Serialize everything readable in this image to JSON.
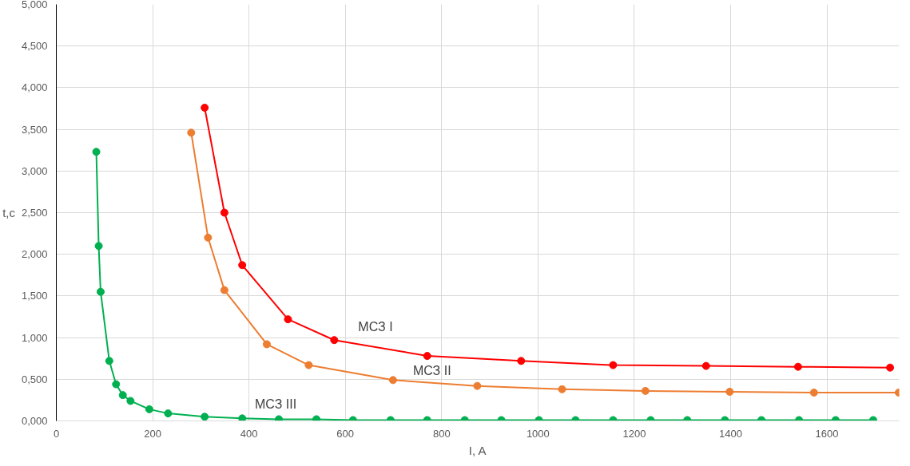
{
  "chart_data": {
    "type": "line",
    "xlabel": "I, A",
    "ylabel": "t,c",
    "xlim": [
      0,
      1750
    ],
    "xticks": [
      0,
      200,
      400,
      600,
      800,
      1000,
      1200,
      1400,
      1600
    ],
    "ylim": [
      0,
      5
    ],
    "yticks": [
      {
        "value": 0,
        "label": "0,000"
      },
      {
        "value": 0.5,
        "label": "0,500"
      },
      {
        "value": 1,
        "label": "1,000"
      },
      {
        "value": 1.5,
        "label": "1,500"
      },
      {
        "value": 2,
        "label": "2,000"
      },
      {
        "value": 2.5,
        "label": "2,500"
      },
      {
        "value": 3,
        "label": "3,000"
      },
      {
        "value": 3.5,
        "label": "3,500"
      },
      {
        "value": 4,
        "label": "4,000"
      },
      {
        "value": 4.5,
        "label": "4,500"
      },
      {
        "value": 5,
        "label": "5,000"
      }
    ],
    "grid": true,
    "marker": "circle",
    "line_style": "solid",
    "series": [
      {
        "name": "МСЗ I",
        "color": "#ff0000",
        "x": [
          308,
          349,
          386,
          481,
          577,
          770,
          965,
          1156,
          1349,
          1540,
          1731
        ],
        "values": [
          3.76,
          2.5,
          1.87,
          1.22,
          0.97,
          0.78,
          0.72,
          0.67,
          0.66,
          0.65,
          0.64
        ]
      },
      {
        "name": "МСЗ II",
        "color": "#ed7d31",
        "x": [
          280,
          315,
          349,
          437,
          524,
          699,
          874,
          1050,
          1223,
          1398,
          1573,
          1749
        ],
        "values": [
          3.46,
          2.2,
          1.57,
          0.92,
          0.67,
          0.49,
          0.42,
          0.38,
          0.36,
          0.35,
          0.34,
          0.34
        ]
      },
      {
        "name": "МСЗ III",
        "color": "#00b050",
        "x": [
          83,
          88,
          92,
          110,
          124,
          138,
          154,
          193,
          232,
          308,
          386,
          462,
          540,
          616,
          694,
          770,
          848,
          924,
          1002,
          1078,
          1156,
          1234,
          1310,
          1388,
          1464,
          1542,
          1618,
          1696
        ],
        "values": [
          3.23,
          2.1,
          1.55,
          0.72,
          0.44,
          0.31,
          0.24,
          0.14,
          0.09,
          0.05,
          0.03,
          0.02,
          0.02,
          0.01,
          0.01,
          0.01,
          0.01,
          0.01,
          0.01,
          0.01,
          0.01,
          0.01,
          0.01,
          0.01,
          0.01,
          0.01,
          0.01,
          0.01
        ]
      }
    ]
  }
}
